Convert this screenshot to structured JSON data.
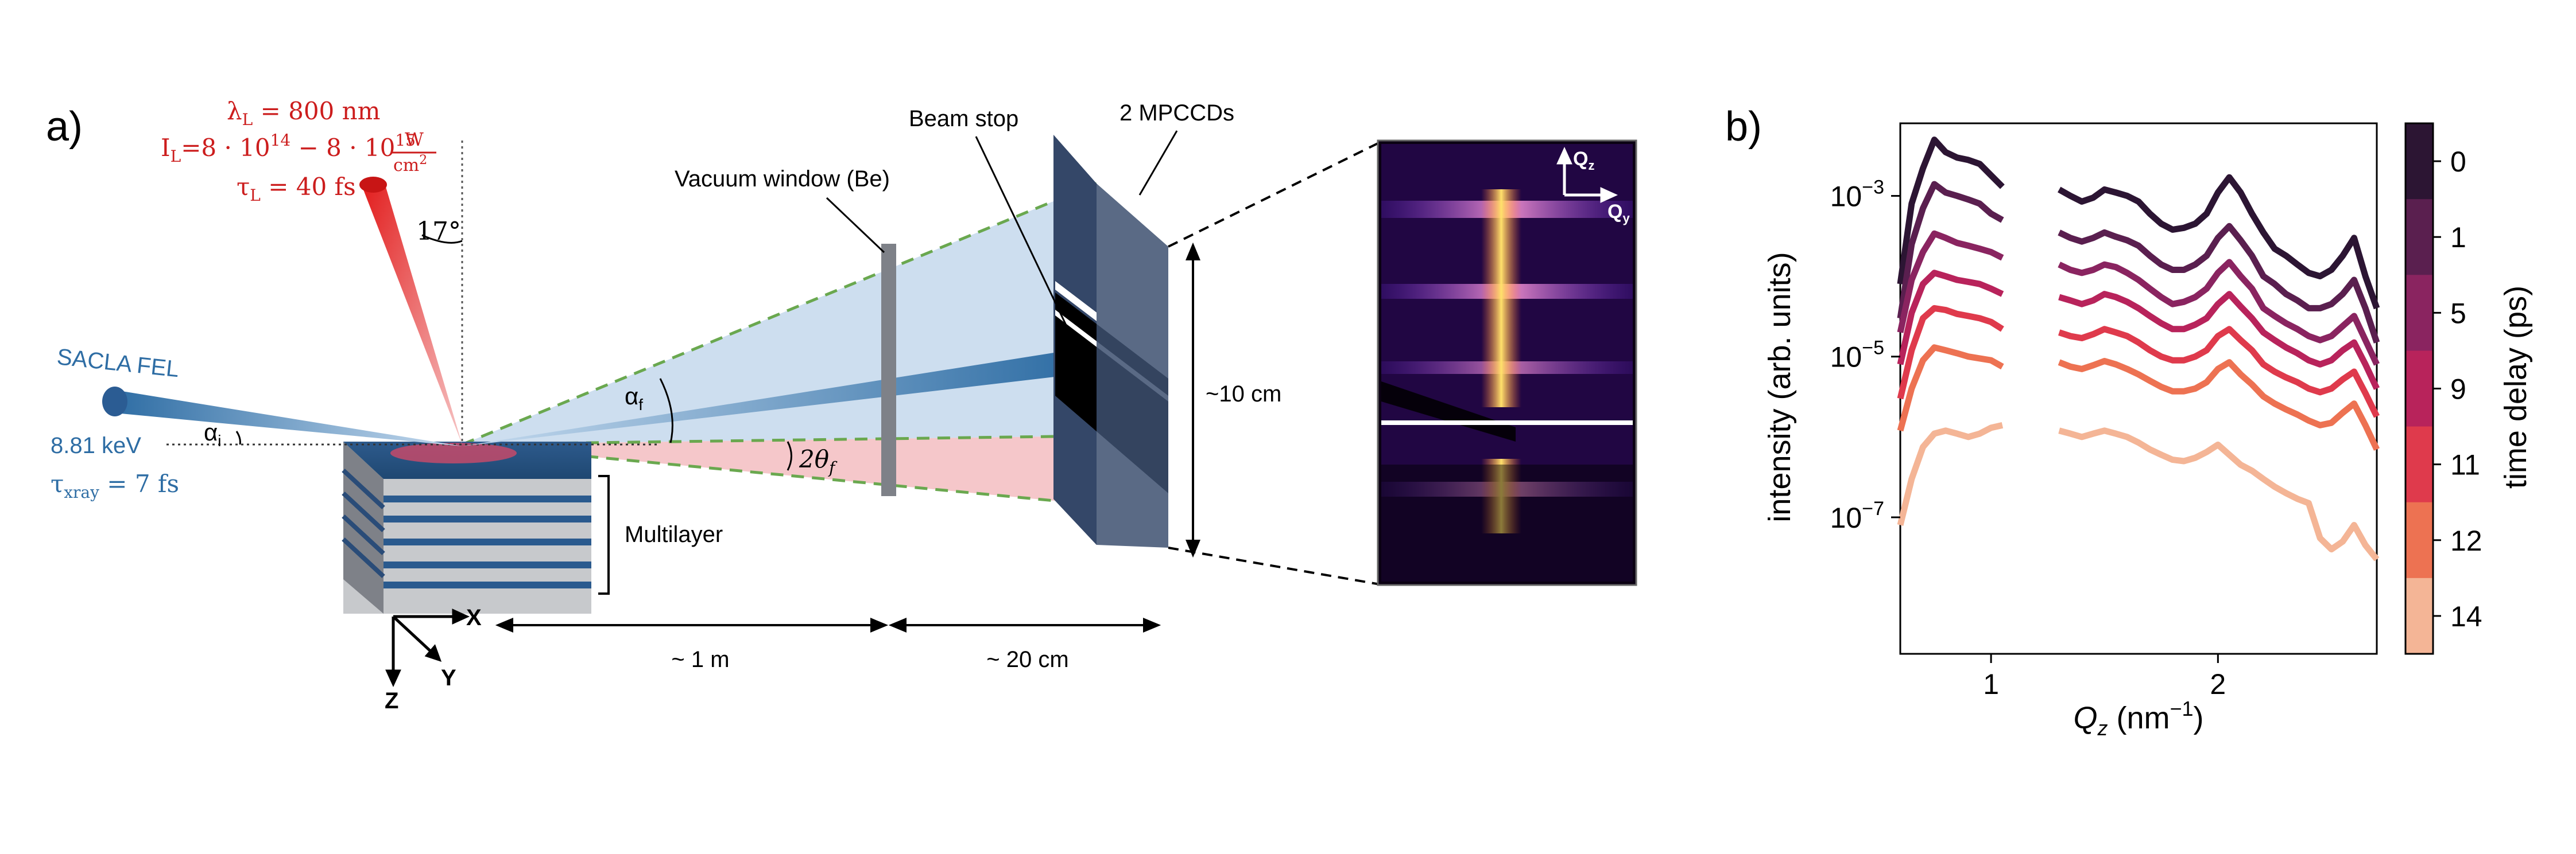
{
  "panel_a": {
    "label": "a)",
    "laser": {
      "wavelength": "λ",
      "wavelength_sub": "L",
      "wavelength_value": " = 800 nm",
      "intensity_prefix": "I",
      "intensity_sub": "L",
      "intensity_value": "=8 · 10",
      "intensity_exp1": "14",
      "intensity_mid": " − 8 · 10",
      "intensity_exp2": "15",
      "unit_num": "W",
      "unit_den": "cm",
      "unit_den_exp": "2",
      "pulse": "τ",
      "pulse_sub": "L",
      "pulse_value": " = 40 fs",
      "angle": "17°"
    },
    "fel": {
      "name": "SACLA FEL",
      "energy": "8.81 keV",
      "pulse": "τ",
      "pulse_sub": "xray",
      "pulse_value": " = 7 fs"
    },
    "angles": {
      "alpha_i": "α",
      "alpha_i_sub": "i",
      "alpha_f": "α",
      "alpha_f_sub": "f",
      "two_theta": "2θ",
      "two_theta_sub": "f"
    },
    "labels": {
      "vacuum_window": "Vacuum window (Be)",
      "beam_stop": "Beam stop",
      "detectors": "2 MPCCDs",
      "detector_height": "~10 cm",
      "multilayer": "Multilayer",
      "dist_sample": "~ 1 m",
      "dist_window": "~ 20 cm",
      "axis_x": "X",
      "axis_y": "Y",
      "axis_z": "Z",
      "q_z": "Q",
      "q_z_sub": "z",
      "q_y": "Q",
      "q_y_sub": "y"
    },
    "colors": {
      "laser": "#cc1d1d",
      "fel": "#2e6da4",
      "cone": "#bcd3ea",
      "specular": "#f3b9bd",
      "detector": "#3a4e70"
    }
  },
  "panel_b": {
    "label": "b)",
    "chart_data": {
      "type": "line",
      "xlabel": "Q",
      "xlabel_sub": "z",
      "xlabel_unit": " (nm",
      "xlabel_exp": "−1",
      "xlabel_close": ")",
      "ylabel": "intensity (arb. units)",
      "yscale": "log",
      "xlim": [
        0.6,
        2.7
      ],
      "ylim": [
        2e-09,
        0.008
      ],
      "xticks": [
        "1",
        "2"
      ],
      "xtick_values": [
        1,
        2
      ],
      "yticks": [
        {
          "mant": "10",
          "exp": "−3",
          "value": 0.001
        },
        {
          "mant": "10",
          "exp": "−5",
          "value": 1e-05
        },
        {
          "mant": "10",
          "exp": "−7",
          "value": 1e-07
        }
      ],
      "gap": [
        1.05,
        1.3
      ],
      "x": [
        0.6,
        0.65,
        0.7,
        0.75,
        0.8,
        0.85,
        0.9,
        0.95,
        1.0,
        1.05,
        1.3,
        1.35,
        1.4,
        1.45,
        1.5,
        1.55,
        1.6,
        1.65,
        1.7,
        1.75,
        1.8,
        1.85,
        1.9,
        1.95,
        2.0,
        2.05,
        2.1,
        2.15,
        2.2,
        2.25,
        2.3,
        2.35,
        2.4,
        2.45,
        2.5,
        2.55,
        2.6,
        2.65,
        2.7
      ],
      "series": [
        {
          "delay": "0",
          "color": "#2c1533",
          "values": [
            8e-05,
            0.0008,
            0.0022,
            0.005,
            0.0035,
            0.003,
            0.0028,
            0.0025,
            0.0018,
            0.0013,
            0.0012,
            0.001,
            0.00085,
            0.00095,
            0.0012,
            0.0011,
            0.001,
            0.00085,
            0.0006,
            0.00045,
            0.00038,
            0.0004,
            0.00045,
            0.0006,
            0.0011,
            0.0017,
            0.0011,
            0.0006,
            0.00035,
            0.00022,
            0.00018,
            0.00014,
            0.00011,
            0.0001,
            0.00012,
            0.00018,
            0.0003,
            0.0001,
            4e-05
          ]
        },
        {
          "delay": "1",
          "color": "#5a1f4f",
          "values": [
            3e-05,
            0.00025,
            0.0007,
            0.0014,
            0.0011,
            0.001,
            0.0009,
            0.0008,
            0.0006,
            0.0005,
            0.00035,
            0.0003,
            0.00027,
            0.0003,
            0.00035,
            0.00031,
            0.00028,
            0.00024,
            0.00018,
            0.00014,
            0.00012,
            0.00012,
            0.00014,
            0.00018,
            0.0003,
            0.00042,
            0.00028,
            0.00018,
            0.0001,
            8e-05,
            6e-05,
            5e-05,
            4e-05,
            4e-05,
            4.5e-05,
            6e-05,
            9e-05,
            4e-05,
            1.5e-05
          ]
        },
        {
          "delay": "5",
          "color": "#8a2460",
          "values": [
            2e-05,
            9e-05,
            0.0002,
            0.00034,
            0.0003,
            0.00026,
            0.00024,
            0.00022,
            0.0002,
            0.00017,
            0.00014,
            0.00012,
            0.00011,
            0.00012,
            0.00014,
            0.00013,
            0.00011,
            9e-05,
            7e-05,
            5.5e-05,
            4.5e-05,
            4.8e-05,
            5.5e-05,
            7e-05,
            0.00011,
            0.00015,
            0.0001,
            7e-05,
            4e-05,
            3.2e-05,
            2.6e-05,
            2.2e-05,
            1.8e-05,
            1.6e-05,
            1.8e-05,
            2.4e-05,
            3.2e-05,
            1.6e-05,
            8e-06
          ]
        },
        {
          "delay": "9",
          "color": "#b8235b",
          "values": [
            8e-06,
            3.5e-05,
            8e-05,
            0.00011,
            0.0001,
            9e-05,
            8.5e-05,
            8e-05,
            7e-05,
            6e-05,
            5.5e-05,
            5e-05,
            4.5e-05,
            5e-05,
            6e-05,
            5.5e-05,
            4.8e-05,
            4e-05,
            3.2e-05,
            2.6e-05,
            2.2e-05,
            2.2e-05,
            2.5e-05,
            3e-05,
            4.5e-05,
            6e-05,
            4.2e-05,
            3e-05,
            2e-05,
            1.6e-05,
            1.3e-05,
            1.1e-05,
            9e-06,
            8e-06,
            9e-06,
            1.2e-05,
            1.5e-05,
            8e-06,
            4e-06
          ]
        },
        {
          "delay": "11",
          "color": "#df3a4c",
          "values": [
            3e-06,
            1.2e-05,
            3e-05,
            4e-05,
            3.8e-05,
            3.4e-05,
            3.2e-05,
            3e-05,
            2.7e-05,
            2.2e-05,
            2e-05,
            1.8e-05,
            1.7e-05,
            1.9e-05,
            2.2e-05,
            2e-05,
            1.8e-05,
            1.5e-05,
            1.2e-05,
            1e-05,
            9e-06,
            9e-06,
            1e-05,
            1.2e-05,
            1.8e-05,
            2.2e-05,
            1.6e-05,
            1.2e-05,
            8e-06,
            6.5e-06,
            5.5e-06,
            4.8e-06,
            4e-06,
            3.6e-06,
            4e-06,
            5.2e-06,
            6.5e-06,
            3.5e-06,
            1.8e-06
          ]
        },
        {
          "delay": "12",
          "color": "#ed7252",
          "values": [
            1.2e-06,
            4e-06,
            9e-06,
            1.3e-05,
            1.2e-05,
            1.1e-05,
            1e-05,
            9.5e-06,
            9e-06,
            7.5e-06,
            8.5e-06,
            7.5e-06,
            7e-06,
            7.8e-06,
            8.8e-06,
            8e-06,
            7e-06,
            6e-06,
            5e-06,
            4.2e-06,
            3.7e-06,
            3.7e-06,
            4e-06,
            4.8e-06,
            7e-06,
            8.5e-06,
            6e-06,
            4.5e-06,
            3.2e-06,
            2.6e-06,
            2.2e-06,
            1.9e-06,
            1.6e-06,
            1.4e-06,
            1.5e-06,
            2e-06,
            2.6e-06,
            1.4e-06,
            7e-07
          ]
        },
        {
          "delay": "14",
          "color": "#f4b596",
          "values": [
            8e-08,
            3e-07,
            7.5e-07,
            1.1e-06,
            1.2e-06,
            1.1e-06,
            1e-06,
            1.1e-06,
            1.3e-06,
            1.4e-06,
            1.2e-06,
            1.1e-06,
            1e-06,
            1.1e-06,
            1.2e-06,
            1.1e-06,
            1e-06,
            8.5e-07,
            7e-07,
            6e-07,
            5.2e-07,
            5e-07,
            5.5e-07,
            6.5e-07,
            8e-07,
            6e-07,
            4.5e-07,
            3.8e-07,
            3e-07,
            2.4e-07,
            2e-07,
            1.7e-07,
            1.5e-07,
            5.5e-08,
            4e-08,
            5e-08,
            8e-08,
            4.5e-08,
            3e-08
          ]
        }
      ],
      "colorbar_label": "time delay (ps)",
      "colorbar_ticks": [
        "0",
        "1",
        "5",
        "9",
        "11",
        "12",
        "14"
      ],
      "grid": false,
      "legend": "colorbar-right"
    }
  }
}
